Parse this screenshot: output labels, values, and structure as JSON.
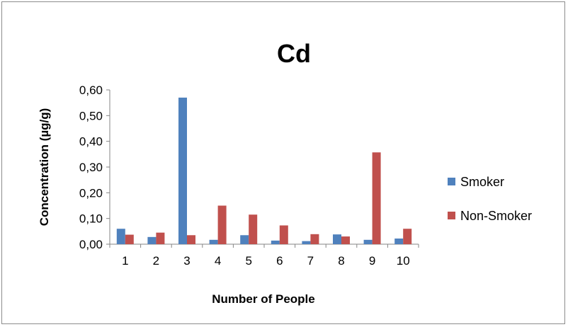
{
  "chart_data": {
    "type": "bar",
    "title": "Cd",
    "xlabel": "Number of People",
    "ylabel": "Concentration (µg/g)",
    "categories": [
      "1",
      "2",
      "3",
      "4",
      "5",
      "6",
      "7",
      "8",
      "9",
      "10"
    ],
    "ylim": [
      0,
      0.6
    ],
    "yticks": [
      "0,00",
      "0,10",
      "0,20",
      "0,30",
      "0,40",
      "0,50",
      "0,60"
    ],
    "grid": false,
    "legend_position": "right",
    "series": [
      {
        "name": "Smoker",
        "color": "#4f81bd",
        "values": [
          0.06,
          0.028,
          0.57,
          0.017,
          0.035,
          0.014,
          0.012,
          0.038,
          0.017,
          0.022
        ]
      },
      {
        "name": "Non-Smoker",
        "color": "#c0504d",
        "values": [
          0.037,
          0.045,
          0.035,
          0.15,
          0.115,
          0.073,
          0.039,
          0.03,
          0.357,
          0.06
        ]
      }
    ]
  }
}
